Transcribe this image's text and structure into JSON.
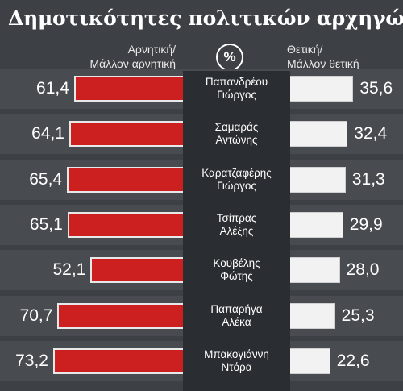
{
  "title": "Δημοτικότητες πολιτικών αρχηγών",
  "header": {
    "negative_label_line1": "Αρνητική/",
    "negative_label_line2": "Μάλλον αρνητική",
    "percent_symbol": "%",
    "positive_label_line1": "Θετική/",
    "positive_label_line2": "Μάλλον θετική"
  },
  "colors": {
    "negative_bar": "#cc1f1f",
    "positive_bar": "#f2f2f2",
    "background": "#3d4044",
    "center_column": "#2a2d31"
  },
  "chart_data": {
    "type": "bar",
    "orientation": "horizontal-diverging",
    "title": "Δημοτικότητες πολιτικών αρχηγών",
    "categories": [
      [
        "Παπανδρέου",
        "Γιώργος"
      ],
      [
        "Σαμαράς",
        "Αντώνης"
      ],
      [
        "Καρατζαφέρης",
        "Γιώργος"
      ],
      [
        "Τσίπρας",
        "Αλέξης"
      ],
      [
        "Κουβέλης",
        "Φώτης"
      ],
      [
        "Παπαρήγα",
        "Αλέκα"
      ],
      [
        "Μπακογιάννη",
        "Ντόρα"
      ]
    ],
    "series": [
      {
        "name": "Αρνητική/Μάλλον αρνητική",
        "values": [
          61.4,
          64.1,
          65.4,
          65.1,
          52.1,
          70.7,
          73.2
        ],
        "labels": [
          "61,4",
          "64,1",
          "65,4",
          "65,1",
          "52,1",
          "70,7",
          "73,2"
        ],
        "color": "#cc1f1f"
      },
      {
        "name": "Θετική/Μάλλον θετική",
        "values": [
          35.6,
          32.4,
          31.3,
          29.9,
          28.0,
          25.3,
          22.6
        ],
        "labels": [
          "35,6",
          "32,4",
          "31,3",
          "29,9",
          "28,0",
          "25,3",
          "22,6"
        ],
        "color": "#f2f2f2"
      }
    ],
    "unit": "%"
  }
}
